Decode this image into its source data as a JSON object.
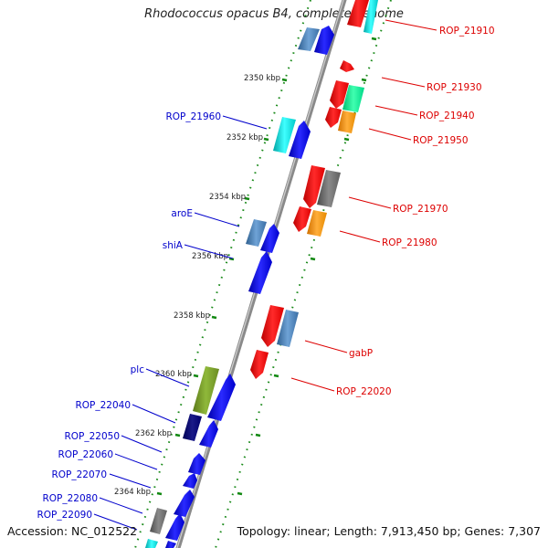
{
  "title": "Rhodococcus opacus B4, complete genome",
  "accession": "Accession: NC_012522",
  "summary": "Topology: linear; Length: 7,913,450 bp; Genes: 7,307",
  "colors": {
    "forward_label": "#0000cc",
    "reverse_label": "#dd0000",
    "tick": "#118811",
    "axis": "#888888"
  },
  "ticks": [
    "2350 kbp",
    "2352 kbp",
    "2354 kbp",
    "2356 kbp",
    "2358 kbp",
    "2360 kbp",
    "2362 kbp",
    "2364 kbp"
  ],
  "forward_labels": [
    "ROP_21960",
    "aroE",
    "shiA",
    "plc",
    "ROP_22040",
    "ROP_22050",
    "ROP_22060",
    "ROP_22070",
    "ROP_22080",
    "ROP_22090"
  ],
  "reverse_labels": [
    "ROP_21910",
    "ROP_21930",
    "ROP_21940",
    "ROP_21950",
    "ROP_21970",
    "ROP_21980",
    "gabP",
    "ROP_22020"
  ]
}
